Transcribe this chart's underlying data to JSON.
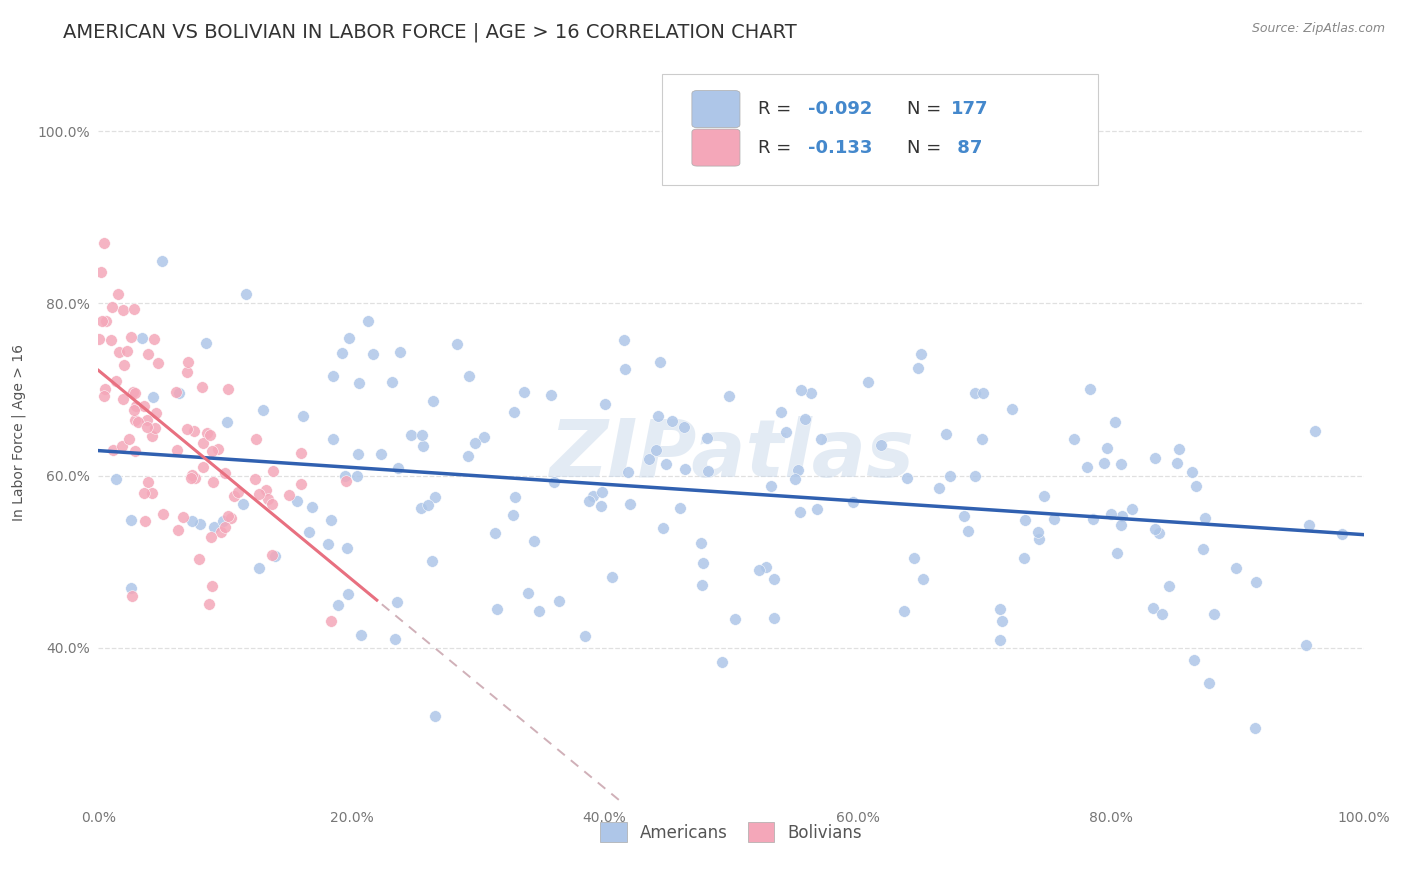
{
  "title": "AMERICAN VS BOLIVIAN IN LABOR FORCE | AGE > 16 CORRELATION CHART",
  "source": "Source: ZipAtlas.com",
  "ylabel": "In Labor Force | Age > 16",
  "xlim": [
    0.0,
    1.0
  ],
  "ylim": [
    0.22,
    1.08
  ],
  "american_R": -0.092,
  "american_N": 177,
  "bolivian_R": -0.133,
  "bolivian_N": 87,
  "american_color": "#aec6e8",
  "bolivian_color": "#f4a7b9",
  "american_line_color": "#3060b0",
  "bolivian_line_color": "#e87080",
  "dashed_color": "#d0b0b8",
  "title_color": "#333333",
  "source_color": "#888888",
  "tick_color": "#777777",
  "grid_color": "#e0e0e0",
  "watermark_color": "#c8d8ea",
  "background_color": "#ffffff",
  "title_fontsize": 14,
  "axis_label_fontsize": 10,
  "tick_fontsize": 10,
  "legend_fontsize": 13,
  "watermark": "ZIPatlas"
}
